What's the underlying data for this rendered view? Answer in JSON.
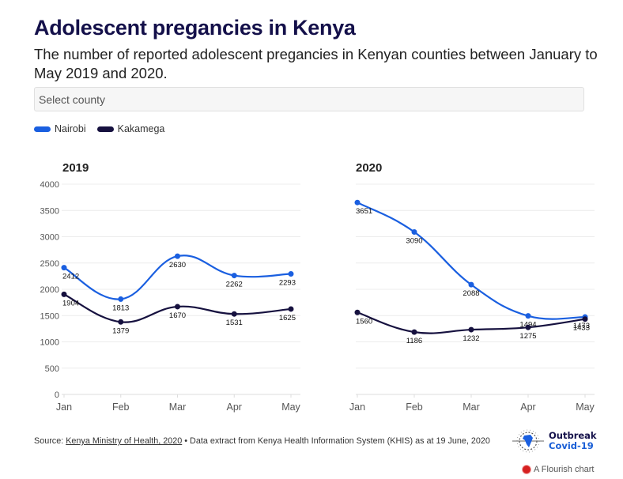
{
  "header": {
    "title": "Adolescent pregancies in Kenya",
    "subtitle": "The number of reported adolescent pregancies in Kenyan counties between January to May 2019 and 2020."
  },
  "controls": {
    "select_placeholder": "Select county"
  },
  "legend": [
    {
      "name": "Nairobi",
      "color": "#1a5fe0"
    },
    {
      "name": "Kakamega",
      "color": "#16113f"
    }
  ],
  "chart_data": [
    {
      "type": "line",
      "title": "2019",
      "categories": [
        "Jan",
        "Feb",
        "Mar",
        "Apr",
        "May"
      ],
      "yticks": [
        0,
        500,
        1000,
        1500,
        2000,
        2500,
        3000,
        3500,
        4000
      ],
      "ylim": [
        0,
        4000
      ],
      "grid": true,
      "legend_position": "top-left",
      "series": [
        {
          "name": "Nairobi",
          "color": "#1a5fe0",
          "values": [
            2412,
            1813,
            2630,
            2262,
            2293
          ]
        },
        {
          "name": "Kakamega",
          "color": "#16113f",
          "values": [
            1904,
            1379,
            1670,
            1531,
            1625
          ]
        }
      ]
    },
    {
      "type": "line",
      "title": "2020",
      "categories": [
        "Jan",
        "Feb",
        "Mar",
        "Apr",
        "May"
      ],
      "yticks": [
        0,
        500,
        1000,
        1500,
        2000,
        2500,
        3000,
        3500,
        4000
      ],
      "ylim": [
        0,
        4000
      ],
      "grid": true,
      "series": [
        {
          "name": "Nairobi",
          "color": "#1a5fe0",
          "values": [
            3651,
            3090,
            2088,
            1494,
            1473
          ]
        },
        {
          "name": "Kakamega",
          "color": "#16113f",
          "values": [
            1560,
            1186,
            1232,
            1275,
            1433
          ]
        }
      ]
    }
  ],
  "footer": {
    "source_prefix": "Source: ",
    "source_link": "Kenya Ministry of Health, 2020",
    "source_suffix": " • Data extract from Kenya Health Information System (KHIS) as at 19 June, 2020",
    "logo_line1": "Outbreak",
    "logo_line2": "Covid-19",
    "flourish_label": "A Flourish chart"
  }
}
